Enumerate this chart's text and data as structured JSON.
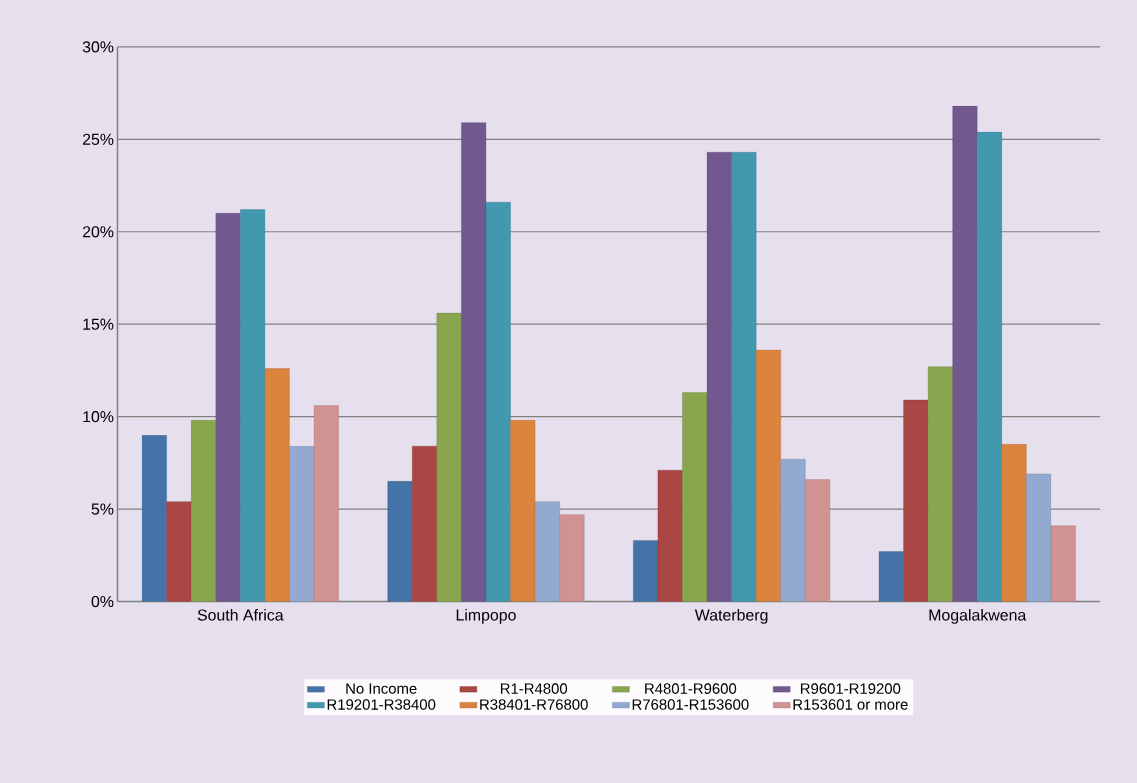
{
  "chart_data": {
    "type": "bar",
    "categories": [
      "South Africa",
      "Limpopo",
      "Waterberg",
      "Mogalakwena"
    ],
    "series": [
      {
        "name": "No Income",
        "color": "#4572a7",
        "values": [
          9.0,
          6.5,
          3.3,
          2.7
        ]
      },
      {
        "name": "R1-R4800",
        "color": "#aa4643",
        "values": [
          5.4,
          8.4,
          7.1,
          10.9
        ]
      },
      {
        "name": "R4801-R9600",
        "color": "#89a54e",
        "values": [
          9.8,
          15.6,
          11.3,
          12.7
        ]
      },
      {
        "name": "R9601-R19200",
        "color": "#71588f",
        "values": [
          21.0,
          25.9,
          24.3,
          26.8
        ]
      },
      {
        "name": "R19201-R38400",
        "color": "#4198af",
        "values": [
          21.2,
          21.6,
          24.3,
          25.4
        ]
      },
      {
        "name": "R38401-R76800",
        "color": "#db843d",
        "values": [
          12.6,
          9.8,
          13.6,
          8.5
        ]
      },
      {
        "name": "R76801-R153600",
        "color": "#93a9cf",
        "values": [
          8.4,
          5.4,
          7.7,
          6.9
        ]
      },
      {
        "name": "R153601 or more",
        "color": "#d19392",
        "values": [
          10.6,
          4.7,
          6.6,
          4.1
        ]
      }
    ],
    "ylim": [
      0,
      30
    ],
    "yticks": [
      {
        "value": 0,
        "label": "0%"
      },
      {
        "value": 5,
        "label": "5%"
      },
      {
        "value": 10,
        "label": "10%"
      },
      {
        "value": 15,
        "label": "15%"
      },
      {
        "value": 20,
        "label": "20%"
      },
      {
        "value": 25,
        "label": "25%"
      },
      {
        "value": 30,
        "label": "30%"
      }
    ],
    "grid": "y",
    "legend": "bottom"
  }
}
